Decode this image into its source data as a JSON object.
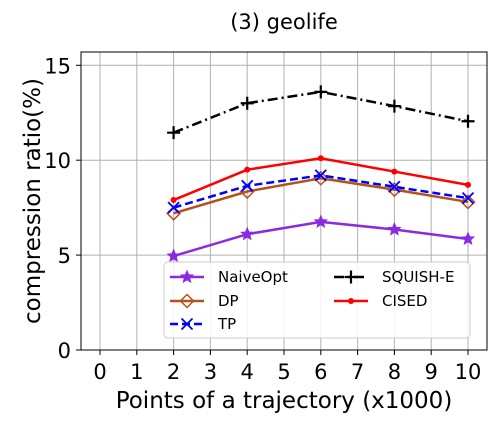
{
  "chart_data": {
    "type": "line",
    "title": "(3) geolife",
    "xlabel": "Points of a trajectory (x1000)",
    "ylabel": "compression ratio(%)",
    "xlim": [
      0,
      10
    ],
    "ylim": [
      0,
      15.7
    ],
    "xticks": [
      "0",
      "1",
      "2",
      "3",
      "4",
      "5",
      "6",
      "7",
      "8",
      "9",
      "10"
    ],
    "yticks": [
      "0",
      "5",
      "10",
      "15"
    ],
    "grid": true,
    "legend_position": "lower-center",
    "legend_columns": 2,
    "x": [
      2,
      4,
      6,
      8,
      10
    ],
    "series": [
      {
        "name": "NaiveOpt",
        "values": [
          4.95,
          6.1,
          6.75,
          6.35,
          5.85
        ],
        "color": "#8a2be2",
        "marker": "star",
        "dash": "solid"
      },
      {
        "name": "DP",
        "values": [
          7.2,
          8.35,
          9.05,
          8.45,
          7.8
        ],
        "color": "#b5521b",
        "marker": "diamond-open",
        "dash": "solid"
      },
      {
        "name": "TP",
        "values": [
          7.5,
          8.65,
          9.2,
          8.6,
          8.0
        ],
        "color": "#0000ff",
        "marker": "x",
        "dash": "dashed"
      },
      {
        "name": "SQUISH-E",
        "values": [
          11.45,
          13.0,
          13.6,
          12.85,
          12.05
        ],
        "color": "#000000",
        "marker": "plus",
        "dash": "dashdot"
      },
      {
        "name": "CISED",
        "values": [
          7.9,
          9.5,
          10.1,
          9.4,
          8.7
        ],
        "color": "#ff0000",
        "marker": "dot",
        "dash": "solid"
      }
    ]
  }
}
